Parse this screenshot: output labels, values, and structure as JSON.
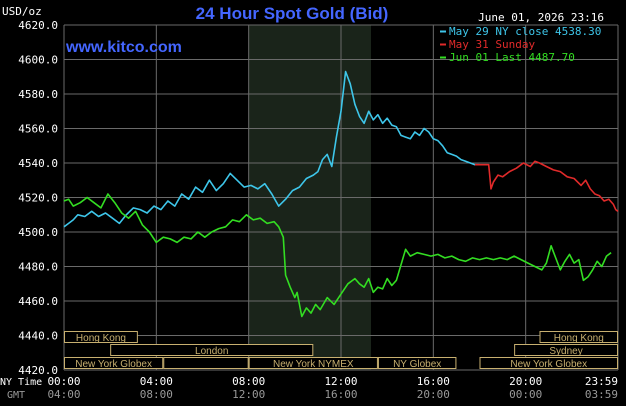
{
  "header": {
    "title": "24 Hour Spot Gold (Bid)",
    "unit": "USD/oz",
    "date": "June 01, 2026 23:16",
    "site": "www.kitco.com"
  },
  "legend": [
    {
      "text": "May 29 NY close 4538.30",
      "color": "#3ec6ea"
    },
    {
      "text": "May 31 Sunday",
      "color": "#e02a2a"
    },
    {
      "text": "Jun 01 Last 4487.70",
      "color": "#33dd22"
    }
  ],
  "axis_labels": {
    "ny_time": "NY Time",
    "gmt": "GMT"
  },
  "sessions": {
    "row1": [
      {
        "label": "Hong Kong",
        "start": -0.1,
        "end": 3.2
      },
      {
        "label": "Hong Kong",
        "start": 20.6,
        "end": 24.0
      }
    ],
    "row2": [
      {
        "label": "London",
        "start": 2.0,
        "end": 10.8
      },
      {
        "label": "Sydney",
        "start": 19.5,
        "end": 24.0
      }
    ],
    "row3": [
      {
        "label": "New York Globex",
        "start": 0.0,
        "end": 4.3
      },
      {
        "label": "",
        "start": 4.3,
        "end": 8.0
      },
      {
        "label": "New York NYMEX",
        "start": 8.0,
        "end": 13.6
      },
      {
        "label": "NY Globex",
        "start": 13.6,
        "end": 17.0
      },
      {
        "label": "New York Globex",
        "start": 18.0,
        "end": 24.0
      }
    ]
  },
  "chart_data": {
    "type": "line",
    "title": "24 Hour Spot Gold (Bid)",
    "ylabel": "USD/oz",
    "ylim": [
      4420,
      4620
    ],
    "yticks": [
      "4620.0",
      "4600.0",
      "4580.0",
      "4560.0",
      "4540.0",
      "4520.0",
      "4500.0",
      "4480.0",
      "4460.0",
      "4440.0",
      "4420.0"
    ],
    "xlim": [
      0,
      24
    ],
    "xticks_ny": [
      "00:00",
      "04:00",
      "08:00",
      "12:00",
      "16:00",
      "20:00",
      "23:59"
    ],
    "xticks_gmt": [
      "04:00",
      "08:00",
      "12:00",
      "16:00",
      "20:00",
      "00:00",
      "03:59"
    ],
    "grid": true,
    "legend_position": "top-right",
    "highlight_range": [
      8.0,
      13.3
    ],
    "series": [
      {
        "name": "May 29 NY close 4538.30",
        "color": "#3ec6ea",
        "points": [
          [
            0.0,
            4503
          ],
          [
            0.2,
            4505
          ],
          [
            0.4,
            4507
          ],
          [
            0.6,
            4510
          ],
          [
            0.9,
            4509
          ],
          [
            1.2,
            4512
          ],
          [
            1.5,
            4509
          ],
          [
            1.8,
            4511
          ],
          [
            2.1,
            4508
          ],
          [
            2.4,
            4505
          ],
          [
            2.7,
            4510
          ],
          [
            3.0,
            4514
          ],
          [
            3.3,
            4513
          ],
          [
            3.6,
            4511
          ],
          [
            3.9,
            4515
          ],
          [
            4.2,
            4513
          ],
          [
            4.5,
            4518
          ],
          [
            4.8,
            4515
          ],
          [
            5.1,
            4522
          ],
          [
            5.4,
            4519
          ],
          [
            5.7,
            4526
          ],
          [
            6.0,
            4523
          ],
          [
            6.3,
            4530
          ],
          [
            6.6,
            4524
          ],
          [
            6.9,
            4528
          ],
          [
            7.2,
            4534
          ],
          [
            7.5,
            4530
          ],
          [
            7.8,
            4526
          ],
          [
            8.1,
            4527
          ],
          [
            8.4,
            4525
          ],
          [
            8.7,
            4528
          ],
          [
            9.0,
            4522
          ],
          [
            9.3,
            4515
          ],
          [
            9.6,
            4519
          ],
          [
            9.9,
            4524
          ],
          [
            10.2,
            4526
          ],
          [
            10.5,
            4531
          ],
          [
            10.8,
            4533
          ],
          [
            11.0,
            4535
          ],
          [
            11.2,
            4542
          ],
          [
            11.4,
            4545
          ],
          [
            11.6,
            4538
          ],
          [
            11.8,
            4555
          ],
          [
            12.0,
            4570
          ],
          [
            12.2,
            4593
          ],
          [
            12.4,
            4586
          ],
          [
            12.6,
            4574
          ],
          [
            12.8,
            4567
          ],
          [
            13.0,
            4563
          ],
          [
            13.2,
            4570
          ],
          [
            13.4,
            4565
          ],
          [
            13.6,
            4568
          ],
          [
            13.8,
            4563
          ],
          [
            14.0,
            4566
          ],
          [
            14.2,
            4562
          ],
          [
            14.4,
            4561
          ],
          [
            14.6,
            4556
          ],
          [
            14.8,
            4555
          ],
          [
            15.0,
            4554
          ],
          [
            15.2,
            4558
          ],
          [
            15.4,
            4556
          ],
          [
            15.6,
            4560
          ],
          [
            15.8,
            4558
          ],
          [
            16.0,
            4554
          ],
          [
            16.2,
            4553
          ],
          [
            16.4,
            4550
          ],
          [
            16.6,
            4546
          ],
          [
            16.8,
            4545
          ],
          [
            17.0,
            4544
          ],
          [
            17.2,
            4542
          ],
          [
            17.4,
            4541
          ],
          [
            17.6,
            4540
          ],
          [
            17.8,
            4539
          ],
          [
            18.0,
            4539
          ]
        ]
      },
      {
        "name": "May 31 Sunday",
        "color": "#e02a2a",
        "points": [
          [
            17.8,
            4539
          ],
          [
            18.0,
            4539
          ],
          [
            18.4,
            4539
          ],
          [
            18.5,
            4525
          ],
          [
            18.6,
            4529
          ],
          [
            18.8,
            4533
          ],
          [
            19.0,
            4532
          ],
          [
            19.3,
            4535
          ],
          [
            19.6,
            4537
          ],
          [
            19.9,
            4540
          ],
          [
            20.2,
            4538
          ],
          [
            20.4,
            4541
          ],
          [
            20.6,
            4540
          ],
          [
            20.9,
            4538
          ],
          [
            21.2,
            4536
          ],
          [
            21.5,
            4535
          ],
          [
            21.8,
            4532
          ],
          [
            22.1,
            4531
          ],
          [
            22.4,
            4527
          ],
          [
            22.6,
            4530
          ],
          [
            22.8,
            4525
          ],
          [
            23.0,
            4522
          ],
          [
            23.2,
            4521
          ],
          [
            23.4,
            4518
          ],
          [
            23.6,
            4519
          ],
          [
            23.8,
            4516
          ],
          [
            23.9,
            4513
          ],
          [
            24.0,
            4512
          ]
        ]
      },
      {
        "name": "Jun 01 Last 4487.70",
        "color": "#33dd22",
        "points": [
          [
            0.0,
            4518
          ],
          [
            0.2,
            4519
          ],
          [
            0.4,
            4515
          ],
          [
            0.7,
            4517
          ],
          [
            1.0,
            4520
          ],
          [
            1.3,
            4517
          ],
          [
            1.6,
            4514
          ],
          [
            1.9,
            4522
          ],
          [
            2.2,
            4517
          ],
          [
            2.5,
            4511
          ],
          [
            2.8,
            4508
          ],
          [
            3.1,
            4512
          ],
          [
            3.4,
            4504
          ],
          [
            3.7,
            4500
          ],
          [
            4.0,
            4494
          ],
          [
            4.3,
            4497
          ],
          [
            4.6,
            4496
          ],
          [
            4.9,
            4494
          ],
          [
            5.2,
            4497
          ],
          [
            5.5,
            4496
          ],
          [
            5.8,
            4500
          ],
          [
            6.1,
            4497
          ],
          [
            6.4,
            4500
          ],
          [
            6.7,
            4502
          ],
          [
            7.0,
            4503
          ],
          [
            7.3,
            4507
          ],
          [
            7.6,
            4506
          ],
          [
            7.9,
            4510
          ],
          [
            8.2,
            4507
          ],
          [
            8.5,
            4508
          ],
          [
            8.8,
            4505
          ],
          [
            9.1,
            4506
          ],
          [
            9.3,
            4503
          ],
          [
            9.5,
            4497
          ],
          [
            9.6,
            4475
          ],
          [
            9.8,
            4468
          ],
          [
            10.0,
            4462
          ],
          [
            10.1,
            4465
          ],
          [
            10.3,
            4451
          ],
          [
            10.5,
            4456
          ],
          [
            10.7,
            4453
          ],
          [
            10.9,
            4458
          ],
          [
            11.1,
            4455
          ],
          [
            11.4,
            4462
          ],
          [
            11.7,
            4458
          ],
          [
            12.0,
            4464
          ],
          [
            12.3,
            4470
          ],
          [
            12.6,
            4473
          ],
          [
            12.8,
            4470
          ],
          [
            13.0,
            4468
          ],
          [
            13.2,
            4473
          ],
          [
            13.4,
            4465
          ],
          [
            13.6,
            4468
          ],
          [
            13.8,
            4467
          ],
          [
            14.0,
            4473
          ],
          [
            14.2,
            4469
          ],
          [
            14.4,
            4472
          ],
          [
            14.6,
            4481
          ],
          [
            14.8,
            4490
          ],
          [
            15.0,
            4486
          ],
          [
            15.3,
            4488
          ],
          [
            15.6,
            4487
          ],
          [
            15.9,
            4486
          ],
          [
            16.2,
            4487
          ],
          [
            16.5,
            4485
          ],
          [
            16.8,
            4486
          ],
          [
            17.1,
            4484
          ],
          [
            17.4,
            4483
          ],
          [
            17.7,
            4485
          ],
          [
            18.0,
            4484
          ],
          [
            18.3,
            4485
          ],
          [
            18.6,
            4484
          ],
          [
            18.9,
            4485
          ],
          [
            19.2,
            4484
          ],
          [
            19.5,
            4486
          ],
          [
            19.8,
            4484
          ],
          [
            20.1,
            4482
          ],
          [
            20.4,
            4480
          ],
          [
            20.7,
            4478
          ],
          [
            20.9,
            4482
          ],
          [
            21.1,
            4492
          ],
          [
            21.3,
            4485
          ],
          [
            21.5,
            4478
          ],
          [
            21.7,
            4483
          ],
          [
            21.9,
            4487
          ],
          [
            22.1,
            4482
          ],
          [
            22.3,
            4484
          ],
          [
            22.5,
            4472
          ],
          [
            22.7,
            4474
          ],
          [
            22.9,
            4478
          ],
          [
            23.1,
            4483
          ],
          [
            23.3,
            4480
          ],
          [
            23.5,
            4486
          ],
          [
            23.7,
            4488
          ]
        ]
      }
    ]
  }
}
